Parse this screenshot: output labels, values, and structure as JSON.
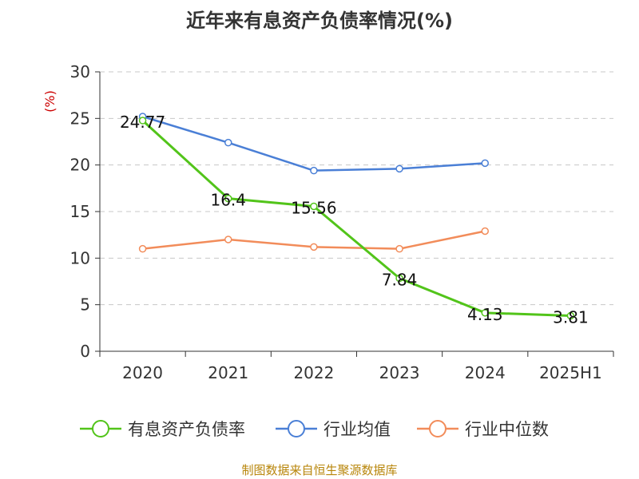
{
  "chart_data": {
    "type": "line",
    "title": "近年来有息资产负债率情况(%)",
    "ylabel": "(%)",
    "categories": [
      "2020",
      "2021",
      "2022",
      "2023",
      "2024",
      "2025H1"
    ],
    "y_ticks": [
      "0",
      "5",
      "10",
      "15",
      "20",
      "25",
      "30"
    ],
    "ylim": [
      0,
      30
    ],
    "grid": true,
    "legend_position": "bottom",
    "series": [
      {
        "name": "有息资产负债率",
        "color": "#52c41a",
        "show_labels": true,
        "values": [
          24.77,
          16.4,
          15.56,
          7.84,
          4.13,
          3.81
        ],
        "labels": [
          "24.77",
          "16.4",
          "15.56",
          "7.84",
          "4.13",
          "3.81"
        ]
      },
      {
        "name": "行业均值",
        "color": "#4a7fd6",
        "show_labels": false,
        "values": [
          25.2,
          22.4,
          19.4,
          19.6,
          20.2,
          null
        ]
      },
      {
        "name": "行业中位数",
        "color": "#f28c5a",
        "show_labels": false,
        "values": [
          11.0,
          12.0,
          11.2,
          11.0,
          12.9,
          null
        ]
      }
    ]
  },
  "footer": {
    "source": "制图数据来自恒生聚源数据库"
  }
}
